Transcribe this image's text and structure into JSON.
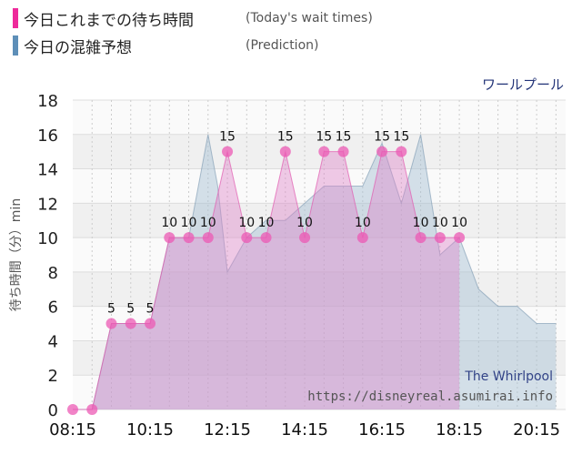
{
  "legend": {
    "today_label": "今日これまでの待ち時間",
    "today_note": "(Today's wait times)",
    "prediction_label": "今日の混雑予想",
    "prediction_note": "(Prediction)"
  },
  "attraction_name": "ワールプール",
  "watermark": {
    "name": "The Whirlpool",
    "url": "https://disneyreal.asumirai.info"
  },
  "colors": {
    "today": "#ee2a9b",
    "prediction": "#5e8fb8"
  },
  "chart_data": {
    "type": "area",
    "ylabel": "待ち時間（分）min",
    "ylim": [
      0,
      18
    ],
    "yticks": [
      0,
      2,
      4,
      6,
      8,
      10,
      12,
      14,
      16,
      18
    ],
    "xlim": [
      "08:15",
      "21:00"
    ],
    "xticks": [
      "08:15",
      "10:15",
      "12:15",
      "14:15",
      "16:15",
      "18:15",
      "20:15"
    ],
    "grid": true,
    "series": [
      {
        "key": "today",
        "type": "area-points",
        "points": [
          {
            "t": "08:15",
            "v": 0
          },
          {
            "t": "08:45",
            "v": 0
          },
          {
            "t": "09:15",
            "v": 5
          },
          {
            "t": "09:45",
            "v": 5
          },
          {
            "t": "10:15",
            "v": 5
          },
          {
            "t": "10:45",
            "v": 10
          },
          {
            "t": "11:15",
            "v": 10
          },
          {
            "t": "11:45",
            "v": 10
          },
          {
            "t": "12:15",
            "v": 15
          },
          {
            "t": "12:45",
            "v": 10
          },
          {
            "t": "13:15",
            "v": 10
          },
          {
            "t": "13:45",
            "v": 15
          },
          {
            "t": "14:15",
            "v": 10
          },
          {
            "t": "14:45",
            "v": 15
          },
          {
            "t": "15:15",
            "v": 15
          },
          {
            "t": "15:45",
            "v": 10
          },
          {
            "t": "16:15",
            "v": 15
          },
          {
            "t": "16:45",
            "v": 15
          },
          {
            "t": "17:15",
            "v": 10
          },
          {
            "t": "17:45",
            "v": 10
          },
          {
            "t": "18:15",
            "v": 10
          }
        ],
        "labels": [
          {
            "t": "09:15",
            "v": 5,
            "text": "5"
          },
          {
            "t": "09:45",
            "v": 5,
            "text": "5"
          },
          {
            "t": "10:15",
            "v": 5,
            "text": "5"
          },
          {
            "t": "10:45",
            "v": 10,
            "text": "10"
          },
          {
            "t": "11:15",
            "v": 10,
            "text": "10"
          },
          {
            "t": "11:45",
            "v": 10,
            "text": "10"
          },
          {
            "t": "12:15",
            "v": 15,
            "text": "15"
          },
          {
            "t": "12:45",
            "v": 10,
            "text": "10"
          },
          {
            "t": "13:15",
            "v": 10,
            "text": "10"
          },
          {
            "t": "13:45",
            "v": 15,
            "text": "15"
          },
          {
            "t": "14:15",
            "v": 10,
            "text": "10"
          },
          {
            "t": "14:45",
            "v": 15,
            "text": "15"
          },
          {
            "t": "15:15",
            "v": 15,
            "text": "15"
          },
          {
            "t": "15:45",
            "v": 10,
            "text": "10"
          },
          {
            "t": "16:15",
            "v": 15,
            "text": "15"
          },
          {
            "t": "16:45",
            "v": 15,
            "text": "15"
          },
          {
            "t": "17:15",
            "v": 10,
            "text": "10"
          },
          {
            "t": "17:45",
            "v": 10,
            "text": "10"
          },
          {
            "t": "18:15",
            "v": 10,
            "text": "10"
          }
        ]
      },
      {
        "key": "prediction",
        "type": "area",
        "points": [
          {
            "t": "08:15",
            "v": 0
          },
          {
            "t": "08:45",
            "v": 0
          },
          {
            "t": "09:15",
            "v": 5
          },
          {
            "t": "10:15",
            "v": 5
          },
          {
            "t": "10:45",
            "v": 10
          },
          {
            "t": "11:15",
            "v": 10
          },
          {
            "t": "11:30",
            "v": 13
          },
          {
            "t": "11:45",
            "v": 16
          },
          {
            "t": "12:00",
            "v": 13
          },
          {
            "t": "12:15",
            "v": 8
          },
          {
            "t": "12:45",
            "v": 10
          },
          {
            "t": "13:15",
            "v": 11
          },
          {
            "t": "13:45",
            "v": 11
          },
          {
            "t": "14:15",
            "v": 12
          },
          {
            "t": "14:45",
            "v": 13
          },
          {
            "t": "15:15",
            "v": 13
          },
          {
            "t": "15:45",
            "v": 13
          },
          {
            "t": "16:15",
            "v": 15.5
          },
          {
            "t": "16:45",
            "v": 12
          },
          {
            "t": "17:15",
            "v": 16
          },
          {
            "t": "17:45",
            "v": 9
          },
          {
            "t": "18:15",
            "v": 10
          },
          {
            "t": "18:45",
            "v": 7
          },
          {
            "t": "19:15",
            "v": 6
          },
          {
            "t": "19:45",
            "v": 6
          },
          {
            "t": "20:15",
            "v": 5
          },
          {
            "t": "20:45",
            "v": 5
          }
        ]
      }
    ]
  }
}
